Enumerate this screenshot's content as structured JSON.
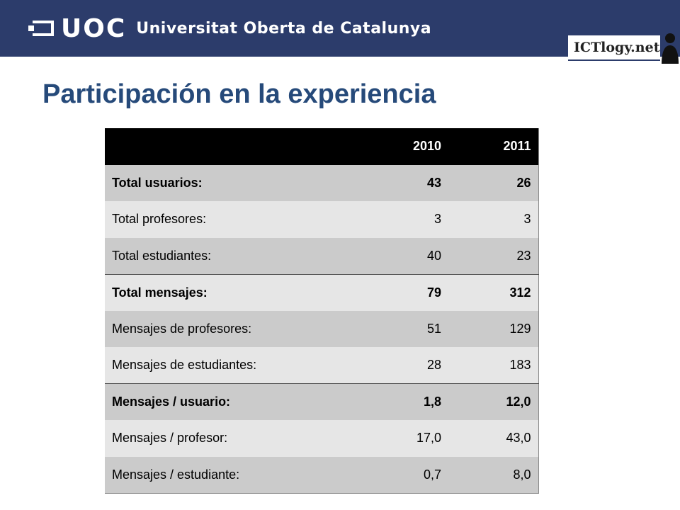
{
  "header": {
    "logo_short": "UOC",
    "logo_long": "Universitat Oberta de Catalunya",
    "brand_right": "ICTlogy.net",
    "bar_color": "#2c3c6b"
  },
  "page": {
    "title": "Participación en la experiencia",
    "title_color": "#264a7a"
  },
  "table": {
    "columns": [
      "",
      "2010",
      "2011"
    ],
    "rows": [
      {
        "label": "Total usuarios:",
        "v2010": "43",
        "v2011": "26"
      },
      {
        "label": "Total profesores:",
        "v2010": "3",
        "v2011": "3"
      },
      {
        "label": "Total estudiantes:",
        "v2010": "40",
        "v2011": "23"
      },
      {
        "label": "Total mensajes:",
        "v2010": "79",
        "v2011": "312"
      },
      {
        "label": "Mensajes de profesores:",
        "v2010": "51",
        "v2011": "129"
      },
      {
        "label": "Mensajes de estudiantes:",
        "v2010": "28",
        "v2011": "183"
      },
      {
        "label": "Mensajes / usuario:",
        "v2010": "1,8",
        "v2011": "12,0"
      },
      {
        "label": "Mensajes / profesor:",
        "v2010": "17,0",
        "v2011": "43,0"
      },
      {
        "label": "Mensajes / estudiante:",
        "v2010": "0,7",
        "v2011": "8,0"
      }
    ]
  }
}
